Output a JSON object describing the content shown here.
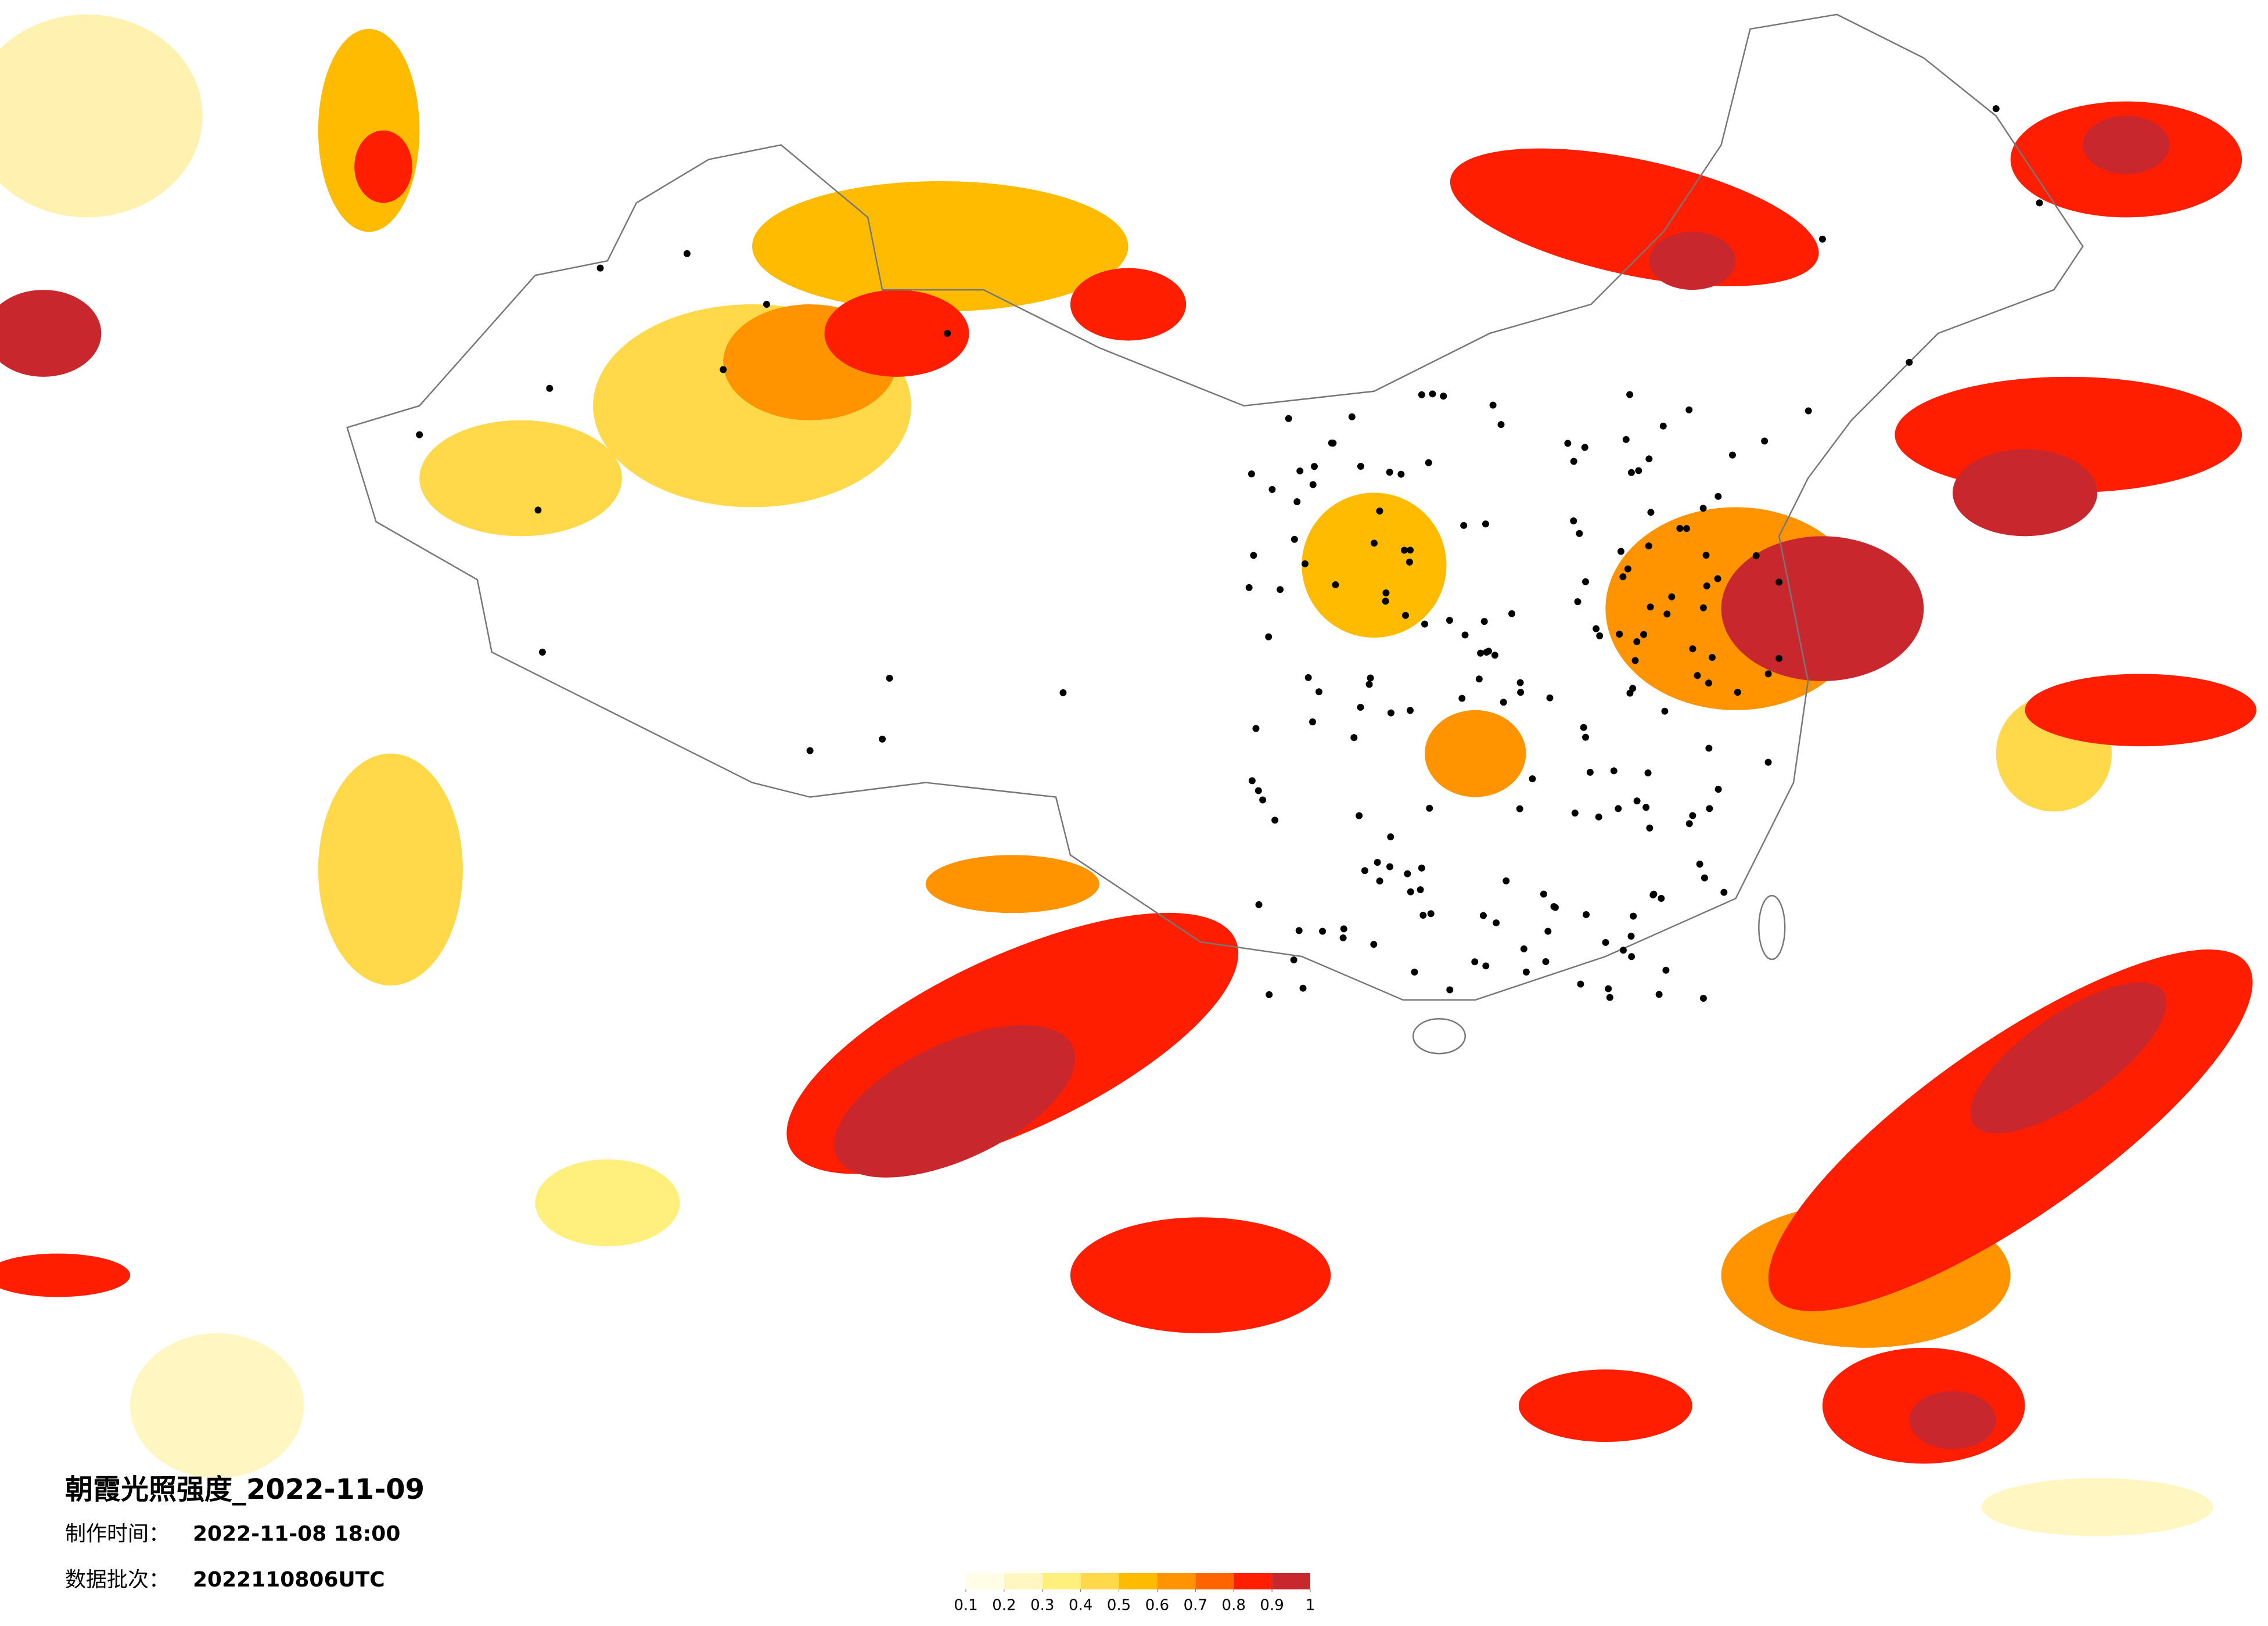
{
  "title": "朝霞光照强度_2022-11-09",
  "production_time": {
    "label": "制作时间：",
    "value": "2022-11-08 18:00"
  },
  "data_batch": {
    "label": "数据批次：",
    "value": "2022110806UTC"
  },
  "legend": {
    "colors": [
      "#fffde6",
      "#fff6c2",
      "#fff07e",
      "#ffd94a",
      "#ffbb00",
      "#ff9400",
      "#ff6400",
      "#ff1e00",
      "#c8272e"
    ],
    "ticks": [
      0.1,
      0.2,
      0.3,
      0.4,
      0.5,
      0.6,
      0.7,
      0.8,
      0.9,
      1
    ]
  }
}
